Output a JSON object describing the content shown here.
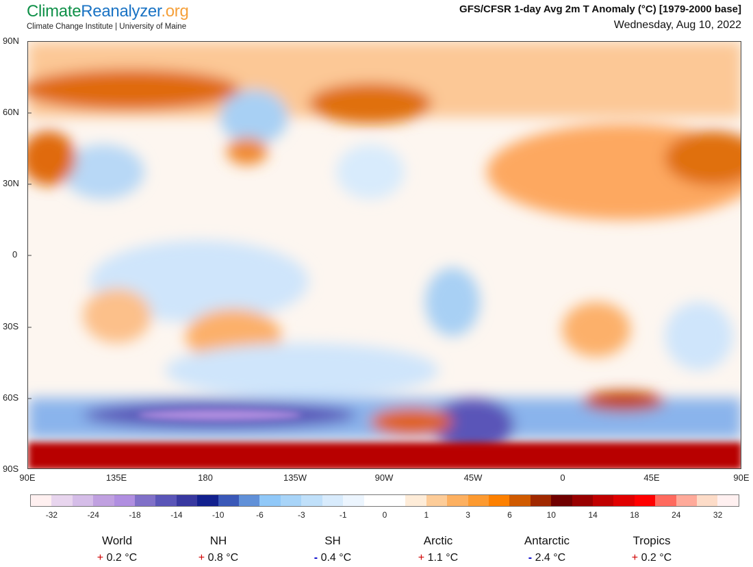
{
  "logo": {
    "part1": "Climate",
    "part2": "Reanalyzer",
    "part3": ".org",
    "subtitle": "Climate Change Institute | University of Maine"
  },
  "header": {
    "title": "GFS/CFSR 1-day Avg 2m T Anomaly (°C) [1979-2000 base]",
    "date": "Wednesday, Aug 10, 2022"
  },
  "map": {
    "lat_labels": [
      "90N",
      "60N",
      "30N",
      "0",
      "30S",
      "60S",
      "90S"
    ],
    "lon_labels": [
      "90E",
      "135E",
      "180",
      "135W",
      "90W",
      "45W",
      "0",
      "45E",
      "90E"
    ]
  },
  "colorbar": {
    "labels": [
      "-32",
      "-24",
      "-18",
      "-14",
      "-10",
      "-6",
      "-3",
      "-1",
      "0",
      "1",
      "3",
      "6",
      "10",
      "14",
      "18",
      "24",
      "32"
    ],
    "colors": [
      "#fff0f0",
      "#e8d5ee",
      "#d5bde8",
      "#c0a0e0",
      "#b08ee0",
      "#8070c8",
      "#5a55b8",
      "#3838a0",
      "#12208e",
      "#3a58b8",
      "#6090d8",
      "#90c8f8",
      "#a8d4f8",
      "#c0e0fa",
      "#d8ebfc",
      "#ecf5fe",
      "#ffffff",
      "#ffffff",
      "#feecd8",
      "#fdcc98",
      "#fdb060",
      "#fd9a30",
      "#fd8000",
      "#d05a00",
      "#a02800",
      "#700000",
      "#980000",
      "#c00000",
      "#e00000",
      "#ff0000",
      "#ff6a5e",
      "#ffaa9a",
      "#fddcc8",
      "#fff0f0"
    ]
  },
  "stats": [
    {
      "name": "World",
      "sign": "+",
      "value": "0.2 °C"
    },
    {
      "name": "NH",
      "sign": "+",
      "value": "0.8 °C"
    },
    {
      "name": "SH",
      "sign": "-",
      "value": "0.4 °C"
    },
    {
      "name": "Arctic",
      "sign": "+",
      "value": "1.1 °C"
    },
    {
      "name": "Antarctic",
      "sign": "-",
      "value": "2.4 °C"
    },
    {
      "name": "Tropics",
      "sign": "+",
      "value": "0.2 °C"
    }
  ]
}
